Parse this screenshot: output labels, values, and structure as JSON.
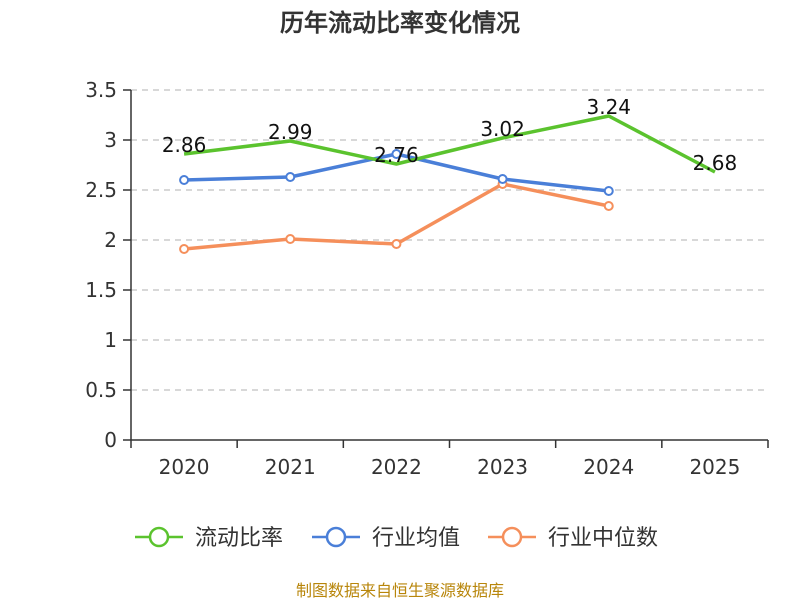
{
  "chart_data": {
    "type": "line",
    "title": "历年流动比率变化情况",
    "categories": [
      "2020",
      "2021",
      "2022",
      "2023",
      "2024",
      "2025"
    ],
    "ylim": [
      0,
      3.5
    ],
    "yticks": [
      "0",
      "0.5",
      "1",
      "1.5",
      "2",
      "2.5",
      "3",
      "3.5"
    ],
    "yticks_values": [
      0,
      0.5,
      1,
      1.5,
      2,
      2.5,
      3,
      3.5
    ],
    "grid": true,
    "legend_position": "bottom",
    "series": [
      {
        "name": "流动比率",
        "color": "#5bc32e",
        "values": [
          2.86,
          2.99,
          2.76,
          3.02,
          3.24,
          2.68
        ],
        "labels": [
          "2.86",
          "2.99",
          "2.76",
          "3.02",
          "3.24",
          "2.68"
        ],
        "show_markers": false
      },
      {
        "name": "行业均值",
        "color": "#4a7fd8",
        "values": [
          2.6,
          2.63,
          2.86,
          2.61,
          2.49,
          null
        ],
        "show_markers": true
      },
      {
        "name": "行业中位数",
        "color": "#f58f5b",
        "values": [
          1.91,
          2.01,
          1.96,
          2.56,
          2.34,
          null
        ],
        "show_markers": true
      }
    ],
    "source": "制图数据来自恒生聚源数据库"
  }
}
